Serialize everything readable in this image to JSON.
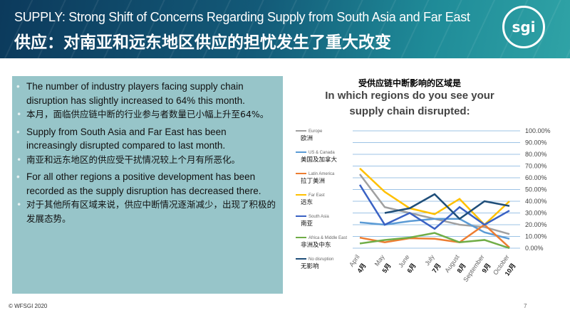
{
  "header": {
    "title_en": "SUPPLY: Strong Shift of Concerns Regarding Supply from South Asia and Far East",
    "title_zh": "供应：对南亚和远东地区供应的担忧发生了重大改变",
    "logo_text": "sgi",
    "logo_ring": "WORLD FEDERATION · SPORTING GOODS INDUSTRY"
  },
  "bullets": [
    {
      "en": "The number of industry players facing supply chain disruption has slightly increased to 64% this month.",
      "zh": "本月，面临供应链中断的行业参与者数量已小幅上升至64%。"
    },
    {
      "en": "Supply from South Asia and Far East has been increasingly disrupted compared to last month.",
      "zh": "南亚和远东地区的供应受干扰情况较上个月有所恶化。"
    },
    {
      "en": "For all other regions a positive development has been recorded as the supply disruption has decreased there.",
      "zh": "对于其他所有区域来说，供应中断情况逐渐减少，出现了积极的发展态势。"
    }
  ],
  "footer": {
    "copyright": "© WFSGI 2020",
    "page": "7"
  },
  "chart_data": {
    "type": "line",
    "title_zh": "受供应链中断影响的区域是",
    "title": "In which regions do you see your supply chain disrupted:",
    "categories": [
      "April",
      "May",
      "June",
      "July",
      "August",
      "September",
      "October"
    ],
    "categories_zh": [
      "4月",
      "5月",
      "6月",
      "7月",
      "8月",
      "9月",
      "10月"
    ],
    "ylim": [
      0,
      100
    ],
    "yticks": [
      "0.00%",
      "10.00%",
      "20.00%",
      "30.00%",
      "40.00%",
      "50.00%",
      "60.00%",
      "70.00%",
      "80.00%",
      "90.00%",
      "100.00%"
    ],
    "legend_position": "left",
    "series": [
      {
        "name": "Europe",
        "name_zh": "欧洲",
        "color": "#a0a0a0",
        "values": [
          63,
          35,
          30,
          25,
          20,
          18,
          12
        ]
      },
      {
        "name": "US & Canada",
        "name_zh": "美国及加拿大",
        "color": "#5b9bd5",
        "values": [
          22,
          20,
          23,
          25,
          25,
          13.5,
          8
        ]
      },
      {
        "name": "Latin America",
        "name_zh": "拉丁美洲",
        "color": "#ed7d31",
        "values": [
          9,
          5,
          8.5,
          8,
          5,
          20,
          0.5
        ]
      },
      {
        "name": "Far East",
        "name_zh": "远东",
        "color": "#ffc000",
        "values": [
          68,
          48,
          34,
          29,
          42,
          20,
          40
        ]
      },
      {
        "name": "South Asia",
        "name_zh": "南亚",
        "color": "#3a62c4",
        "values": [
          54,
          20,
          30,
          16.5,
          35,
          20,
          32
        ]
      },
      {
        "name": "Africa & Middle East",
        "name_zh": "非洲及中东",
        "color": "#70ad47",
        "values": [
          4,
          7,
          9,
          13,
          5,
          7,
          0
        ]
      },
      {
        "name": "No disruption",
        "name_zh": "无影响",
        "color": "#1f4e79",
        "values": [
          null,
          30,
          34,
          46,
          25,
          40,
          36
        ]
      }
    ]
  }
}
